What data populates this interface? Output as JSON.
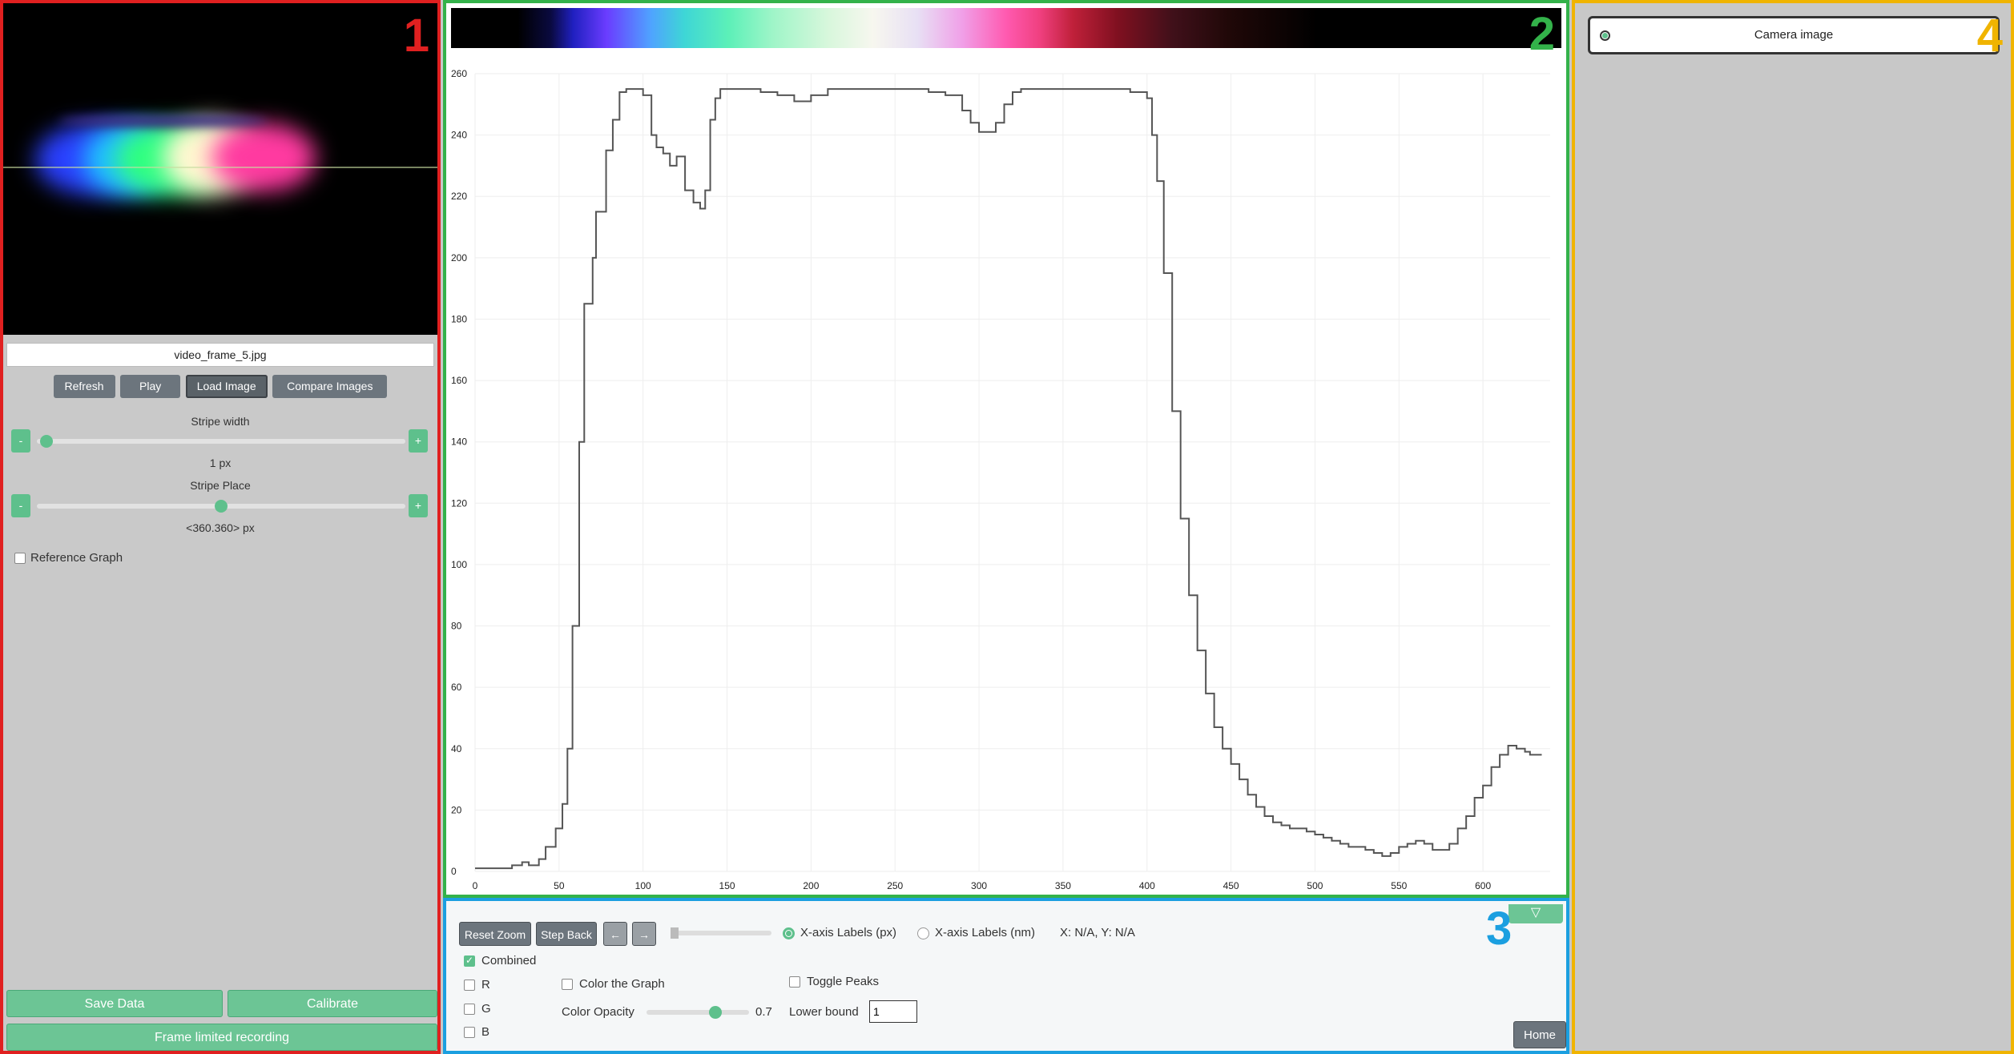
{
  "panel_numbers": {
    "p1": "1",
    "p2": "2",
    "p3": "3",
    "p4": "4"
  },
  "panel_colors": {
    "p1": "#e02020",
    "p2": "#33b24a",
    "p3": "#1b9fe0",
    "p4": "#f0b400"
  },
  "left": {
    "filename": "video_frame_5.jpg",
    "buttons": {
      "refresh": "Refresh",
      "play": "Play",
      "load_image": "Load Image",
      "compare_images": "Compare Images"
    },
    "stripe_width": {
      "label": "Stripe width",
      "value": "1 px",
      "minus": "-",
      "plus": "+",
      "position": 0.01
    },
    "stripe_place": {
      "label": "Stripe Place",
      "value": "<360.360> px",
      "minus": "-",
      "plus": "+",
      "position": 0.5
    },
    "reference_graph": {
      "label": "Reference Graph",
      "checked": false
    },
    "save_data": "Save Data",
    "calibrate": "Calibrate",
    "frame_limited_recording": "Frame limited recording"
  },
  "chart_data": {
    "type": "line",
    "title": "",
    "xlabel": "",
    "ylabel": "",
    "xlim": [
      0,
      640
    ],
    "ylim": [
      0,
      260
    ],
    "x_ticks": [
      0,
      50,
      100,
      150,
      200,
      250,
      300,
      350,
      400,
      450,
      500,
      550,
      600
    ],
    "y_ticks": [
      0,
      20,
      40,
      60,
      80,
      100,
      120,
      140,
      160,
      180,
      200,
      220,
      240,
      260
    ],
    "grid": true,
    "series": [
      {
        "color": "#555555",
        "x": [
          0,
          15,
          22,
          28,
          32,
          38,
          42,
          48,
          52,
          55,
          58,
          62,
          65,
          70,
          72,
          78,
          82,
          86,
          90,
          95,
          100,
          105,
          108,
          112,
          116,
          120,
          125,
          130,
          134,
          137,
          140,
          143,
          146,
          150,
          155,
          160,
          170,
          180,
          190,
          200,
          210,
          220,
          230,
          240,
          250,
          260,
          270,
          280,
          290,
          295,
          300,
          305,
          310,
          315,
          320,
          325,
          330,
          340,
          350,
          360,
          370,
          380,
          390,
          400,
          403,
          406,
          410,
          415,
          420,
          425,
          430,
          435,
          440,
          445,
          450,
          455,
          460,
          465,
          470,
          475,
          480,
          485,
          490,
          495,
          500,
          505,
          510,
          515,
          520,
          525,
          530,
          535,
          540,
          545,
          550,
          555,
          560,
          565,
          570,
          575,
          580,
          585,
          590,
          595,
          600,
          605,
          610,
          615,
          620,
          625,
          628,
          635
        ],
        "y": [
          1,
          1,
          2,
          3,
          2,
          4,
          8,
          14,
          22,
          40,
          80,
          140,
          185,
          200,
          215,
          235,
          245,
          254,
          255,
          255,
          253,
          240,
          236,
          234,
          230,
          233,
          222,
          218,
          216,
          222,
          245,
          252,
          255,
          255,
          255,
          255,
          254,
          253,
          251,
          253,
          255,
          255,
          255,
          255,
          255,
          255,
          254,
          253,
          248,
          244,
          241,
          241,
          244,
          250,
          254,
          255,
          255,
          255,
          255,
          255,
          255,
          255,
          254,
          252,
          240,
          225,
          195,
          150,
          115,
          90,
          72,
          58,
          47,
          40,
          35,
          30,
          25,
          21,
          18,
          16,
          15,
          14,
          14,
          13,
          12,
          11,
          10,
          9,
          8,
          8,
          7,
          6,
          5,
          6,
          8,
          9,
          10,
          9,
          7,
          7,
          9,
          14,
          18,
          24,
          28,
          34,
          38,
          41,
          40,
          39,
          38,
          38
        ]
      }
    ]
  },
  "controls": {
    "reset_zoom": "Reset Zoom",
    "step_back": "Step Back",
    "arrow_left": "←",
    "arrow_right": "→",
    "xaxis_px": "X-axis Labels (px)",
    "xaxis_nm": "X-axis Labels (nm)",
    "coords": "X: N/A, Y: N/A",
    "combined": "Combined",
    "r": "R",
    "g": "G",
    "b": "B",
    "color_graph": "Color the Graph",
    "toggle_peaks": "Toggle Peaks",
    "color_opacity": "Color Opacity",
    "opacity_value": "0.7",
    "opacity_position": 0.7,
    "lower_bound": "Lower bound",
    "lower_bound_value": "1",
    "collapse_icon": "▽",
    "home": "Home"
  },
  "right": {
    "camera_image": "Camera image"
  }
}
